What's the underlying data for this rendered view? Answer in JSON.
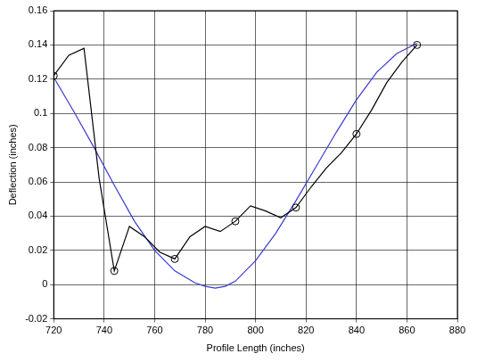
{
  "chart_data": {
    "type": "line",
    "x_label": "Profile Length (inches)",
    "y_label": "Deflection (inches)",
    "xlim": [
      720,
      880
    ],
    "xticks": [
      720,
      740,
      760,
      780,
      800,
      820,
      840,
      860,
      880
    ],
    "ylim": [
      -0.02,
      0.16
    ],
    "yticks": [
      -0.02,
      0,
      0.02,
      0.04,
      0.06,
      0.08,
      0.1,
      0.12,
      0.14,
      0.16
    ],
    "grid": true,
    "series": [
      {
        "color": "#000000",
        "marker": "none",
        "line_style": "solid",
        "x": [
          720,
          726,
          732,
          738,
          744,
          750,
          756,
          762,
          768,
          774,
          780,
          786,
          792,
          798,
          804,
          810,
          816,
          822,
          828,
          834,
          840,
          846,
          852,
          858,
          864
        ],
        "values": [
          0.122,
          0.134,
          0.138,
          0.062,
          0.008,
          0.034,
          0.028,
          0.019,
          0.015,
          0.028,
          0.034,
          0.031,
          0.037,
          0.046,
          0.043,
          0.039,
          0.045,
          0.057,
          0.068,
          0.077,
          0.088,
          0.102,
          0.118,
          0.13,
          0.14
        ]
      },
      {
        "color": "#000000",
        "marker": "circle",
        "line_style": "none",
        "x": [
          720,
          744,
          768,
          792,
          816,
          840,
          864
        ],
        "values": [
          0.122,
          0.008,
          0.015,
          0.037,
          0.045,
          0.088,
          0.14
        ]
      },
      {
        "color": "#3a3ad0",
        "marker": "none",
        "line_style": "solid",
        "x": [
          720,
          728,
          736,
          744,
          752,
          760,
          768,
          776,
          780,
          784,
          788,
          792,
          800,
          808,
          816,
          824,
          832,
          840,
          848,
          856,
          864
        ],
        "values": [
          0.121,
          0.101,
          0.08,
          0.058,
          0.037,
          0.02,
          0.008,
          0.001,
          -0.001,
          -0.002,
          -0.001,
          0.002,
          0.014,
          0.03,
          0.049,
          0.069,
          0.089,
          0.108,
          0.124,
          0.135,
          0.141
        ]
      }
    ]
  }
}
